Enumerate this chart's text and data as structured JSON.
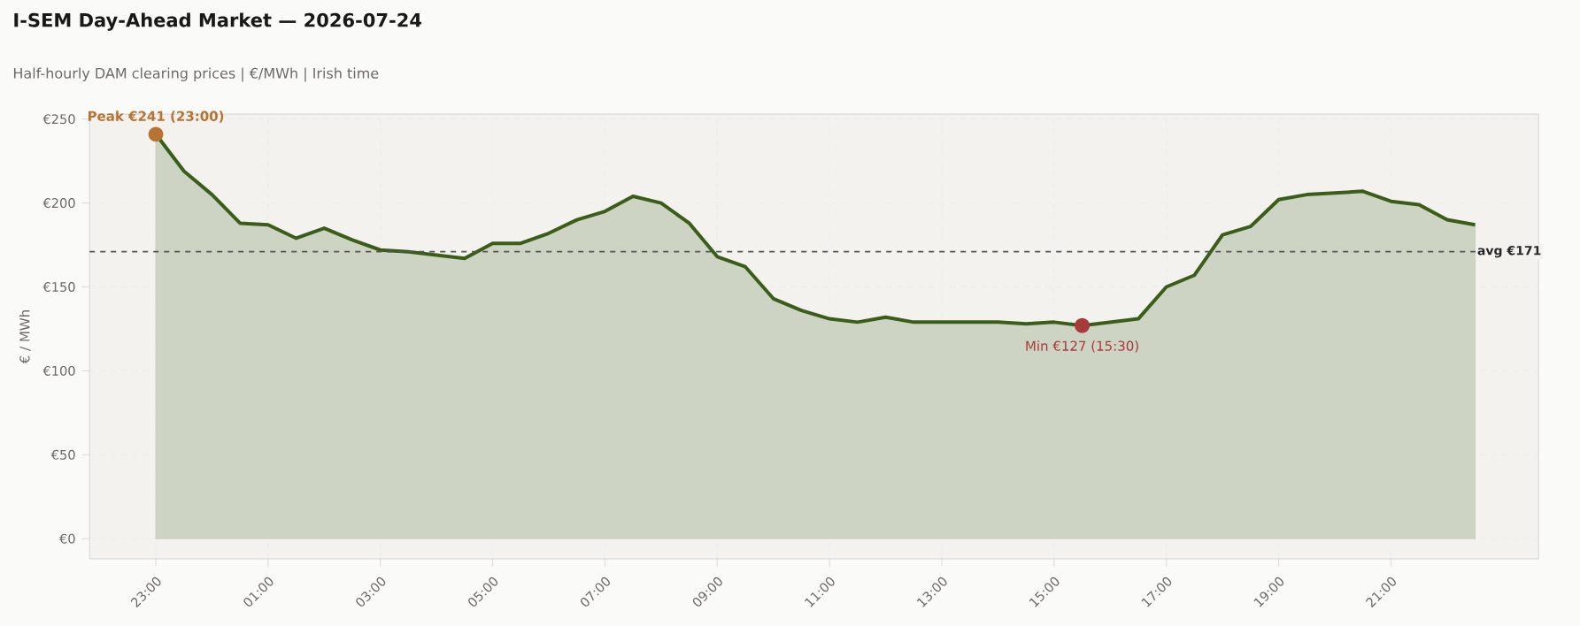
{
  "chart_data": {
    "type": "area",
    "title": "I-SEM Day-Ahead Market — 2026-07-24",
    "subtitle": "Half-hourly DAM clearing prices  |  €/MWh  |  Irish time",
    "ylabel": "€ / MWh",
    "categories": [
      "23:00",
      null,
      null,
      null,
      "01:00",
      null,
      null,
      null,
      "03:00",
      null,
      null,
      null,
      "05:00",
      null,
      null,
      null,
      "07:00",
      null,
      null,
      null,
      "09:00",
      null,
      null,
      null,
      "11:00",
      null,
      null,
      null,
      "13:00",
      null,
      null,
      null,
      "15:00",
      null,
      null,
      null,
      "17:00",
      null,
      null,
      null,
      "19:00",
      null,
      null,
      null,
      "21:00",
      null,
      null,
      null
    ],
    "series": [
      {
        "color": "#3a5e1a",
        "values": [
          241,
          219,
          205,
          188,
          187,
          179,
          185,
          178,
          172,
          171,
          169,
          167,
          176,
          176,
          182,
          190,
          195,
          204,
          200,
          188,
          168,
          162,
          143,
          136,
          131,
          129,
          132,
          129,
          129,
          129,
          129,
          128,
          129,
          127,
          129,
          131,
          150,
          157,
          181,
          186,
          202,
          205,
          206,
          207,
          201,
          199,
          190,
          187
        ]
      }
    ],
    "ylim": [
      -12,
      253
    ],
    "yticks": [
      {
        "value": 0,
        "label": "€0"
      },
      {
        "value": 50,
        "label": "€50"
      },
      {
        "value": 100,
        "label": "€100"
      },
      {
        "value": 150,
        "label": "€150"
      },
      {
        "value": 200,
        "label": "€200"
      },
      {
        "value": 250,
        "label": "€250"
      }
    ],
    "ref_lines": [
      {
        "axis": "y",
        "value": 171,
        "label": "avg €171",
        "color": "#555555",
        "line_style": "dashed"
      }
    ],
    "annotations": [
      {
        "text": "Peak  €241  (23:00)",
        "y": 241
      },
      {
        "text": "Min  €127  (15:30)",
        "y": 127
      }
    ],
    "grid": true
  }
}
